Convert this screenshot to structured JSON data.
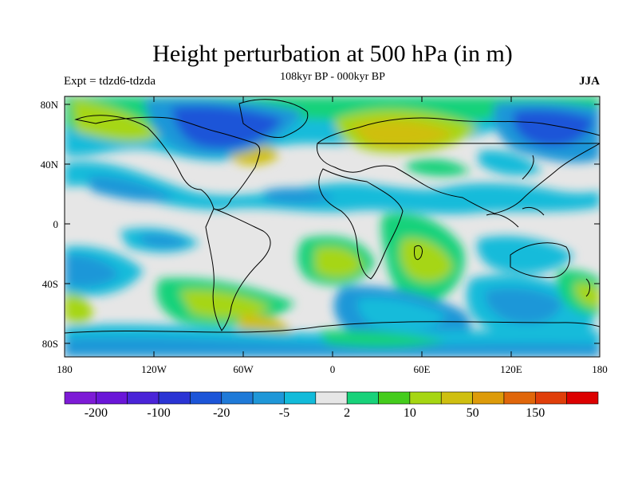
{
  "title": "Height perturbation at 500 hPa (in m)",
  "subtitle": "108kyr BP - 000kyr BP",
  "experiment_label": "Expt = tdzd6-tdzda",
  "season": "JJA",
  "axes": {
    "lat_labels": [
      "80N",
      "40N",
      "0",
      "40S",
      "80S"
    ],
    "lon_labels": [
      "180",
      "120W",
      "60W",
      "0",
      "60E",
      "120E",
      "180"
    ]
  },
  "colorbar": {
    "colors": [
      "#7d1bd6",
      "#6a16d8",
      "#4a24d8",
      "#2a34d4",
      "#1c55d8",
      "#1f7ad8",
      "#1f97d8",
      "#12bbda",
      "#e6e6e6",
      "#18d27a",
      "#44cc1c",
      "#a6d612",
      "#cfbf10",
      "#dd9b0a",
      "#e0660a",
      "#e03e0a",
      "#dc0000"
    ],
    "tick_labels": [
      "-200",
      "-100",
      "-20",
      "-5",
      "2",
      "10",
      "50",
      "150"
    ]
  }
}
